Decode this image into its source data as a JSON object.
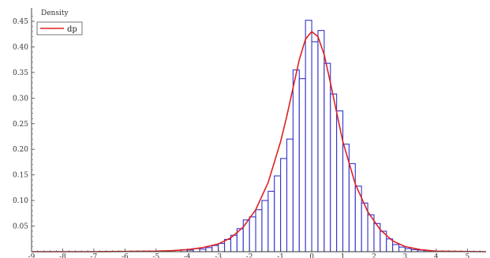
{
  "chart_data": {
    "type": "bar",
    "ylabel": "Density",
    "xlim": [
      -9,
      5.6
    ],
    "ylim": [
      0,
      0.47
    ],
    "x_ticks": [
      -9,
      -8,
      -7,
      -6,
      -5,
      -4,
      -3,
      -2,
      -1,
      0,
      1,
      2,
      3,
      4,
      5
    ],
    "y_ticks": [
      0.05,
      0.1,
      0.15,
      0.2,
      0.25,
      0.3,
      0.35,
      0.4,
      0.45
    ],
    "grid": false,
    "legend": {
      "placement": "top-left",
      "entries": [
        "dp"
      ]
    },
    "colors": {
      "bars": "#3333cc",
      "curve": "#e02020",
      "axis": "#444444"
    },
    "histogram": {
      "bin_width": 0.2,
      "bins": [
        {
          "x0": -4.2,
          "density": 0.004
        },
        {
          "x0": -4.0,
          "density": 0.003
        },
        {
          "x0": -3.8,
          "density": 0.006
        },
        {
          "x0": -3.6,
          "density": 0.005
        },
        {
          "x0": -3.4,
          "density": 0.008
        },
        {
          "x0": -3.2,
          "density": 0.012
        },
        {
          "x0": -3.0,
          "density": 0.016
        },
        {
          "x0": -2.8,
          "density": 0.024
        },
        {
          "x0": -2.6,
          "density": 0.032
        },
        {
          "x0": -2.4,
          "density": 0.045
        },
        {
          "x0": -2.2,
          "density": 0.062
        },
        {
          "x0": -2.0,
          "density": 0.068
        },
        {
          "x0": -1.8,
          "density": 0.082
        },
        {
          "x0": -1.6,
          "density": 0.1
        },
        {
          "x0": -1.4,
          "density": 0.118
        },
        {
          "x0": -1.2,
          "density": 0.148
        },
        {
          "x0": -1.0,
          "density": 0.182
        },
        {
          "x0": -0.8,
          "density": 0.22
        },
        {
          "x0": -0.6,
          "density": 0.355
        },
        {
          "x0": -0.4,
          "density": 0.338
        },
        {
          "x0": -0.2,
          "density": 0.452
        },
        {
          "x0": 0.0,
          "density": 0.41
        },
        {
          "x0": 0.2,
          "density": 0.432
        },
        {
          "x0": 0.4,
          "density": 0.368
        },
        {
          "x0": 0.6,
          "density": 0.308
        },
        {
          "x0": 0.8,
          "density": 0.275
        },
        {
          "x0": 1.0,
          "density": 0.21
        },
        {
          "x0": 1.2,
          "density": 0.172
        },
        {
          "x0": 1.4,
          "density": 0.128
        },
        {
          "x0": 1.6,
          "density": 0.095
        },
        {
          "x0": 1.8,
          "density": 0.072
        },
        {
          "x0": 2.0,
          "density": 0.055
        },
        {
          "x0": 2.2,
          "density": 0.04
        },
        {
          "x0": 2.4,
          "density": 0.025
        },
        {
          "x0": 2.6,
          "density": 0.014
        },
        {
          "x0": 2.8,
          "density": 0.009
        },
        {
          "x0": 3.0,
          "density": 0.006
        },
        {
          "x0": 3.2,
          "density": 0.004
        },
        {
          "x0": 3.4,
          "density": 0.003
        },
        {
          "x0": 3.6,
          "density": 0.002
        }
      ]
    },
    "series": [
      {
        "name": "dp",
        "type": "line",
        "x": [
          -9,
          -7,
          -5,
          -4.5,
          -4,
          -3.5,
          -3,
          -2.6,
          -2.2,
          -1.8,
          -1.4,
          -1.0,
          -0.8,
          -0.6,
          -0.4,
          -0.2,
          0.0,
          0.2,
          0.4,
          0.6,
          0.8,
          1.0,
          1.4,
          1.8,
          2.2,
          2.6,
          3.0,
          3.5,
          4.0,
          5.6
        ],
        "y": [
          0,
          0,
          0.001,
          0.002,
          0.004,
          0.008,
          0.015,
          0.027,
          0.048,
          0.082,
          0.135,
          0.215,
          0.265,
          0.32,
          0.375,
          0.415,
          0.43,
          0.42,
          0.385,
          0.33,
          0.272,
          0.215,
          0.132,
          0.078,
          0.043,
          0.021,
          0.01,
          0.004,
          0.001,
          0
        ]
      }
    ]
  }
}
